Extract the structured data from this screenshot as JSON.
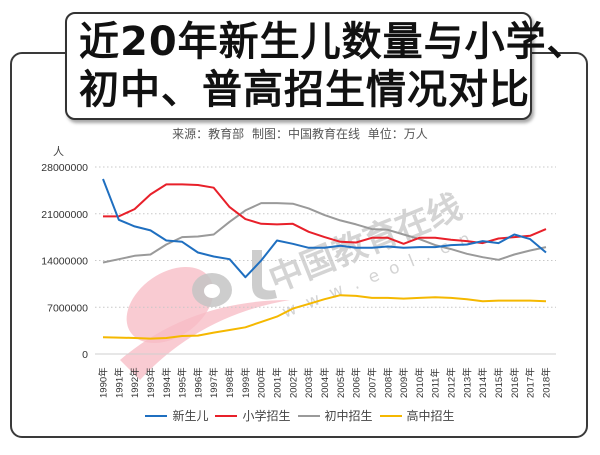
{
  "title": {
    "line1": "近20年新生儿数量与小学、",
    "line2": "初中、普高招生情况对比"
  },
  "subtitle": "来源：教育部    制图：中国教育在线    单位：万人",
  "y_unit": "人",
  "watermark": {
    "logo": "eol",
    "text": "中国教育在线",
    "url": "w w w . e o l . c n"
  },
  "colors": {
    "births": "#1f6fc0",
    "primary": "#e8202a",
    "junior": "#9a9a9a",
    "senior": "#f5b800",
    "grid": "#c8c8c8",
    "axis_text": "#333333"
  },
  "chart_data": {
    "type": "line",
    "title": "近20年新生儿数量与小学、初中、普高招生情况对比",
    "subtitle": "来源：教育部 制图：中国教育在线 单位：万人",
    "xlabel": "",
    "ylabel": "人",
    "ylim": [
      0,
      28000000
    ],
    "yticks": [
      0,
      7000000,
      14000000,
      21000000,
      28000000
    ],
    "ytick_labels": [
      "0",
      "7000000",
      "14000000",
      "21000000",
      "28000000"
    ],
    "grid": "horizontal dotted",
    "legend_position": "bottom",
    "categories": [
      "1990年",
      "1991年",
      "1992年",
      "1993年",
      "1994年",
      "1995年",
      "1996年",
      "1997年",
      "1998年",
      "1999年",
      "2000年",
      "2001年",
      "2002年",
      "2003年",
      "2004年",
      "2005年",
      "2006年",
      "2007年",
      "2008年",
      "2009年",
      "2010年",
      "2011年",
      "2012年",
      "2013年",
      "2014年",
      "2015年",
      "2016年",
      "2017年",
      "2018年"
    ],
    "series": [
      {
        "name": "新生儿",
        "key": "births",
        "values": [
          26200000,
          20100000,
          19100000,
          18500000,
          17000000,
          16800000,
          15200000,
          14600000,
          14200000,
          11500000,
          14000000,
          17000000,
          16500000,
          15900000,
          15900000,
          16200000,
          15900000,
          15900000,
          16100000,
          15900000,
          16000000,
          16000000,
          16300000,
          16400000,
          16900000,
          16600000,
          17900000,
          17200000,
          15200000
        ]
      },
      {
        "name": "小学招生",
        "key": "primary",
        "values": [
          20600000,
          20600000,
          21700000,
          23900000,
          25400000,
          25400000,
          25300000,
          24900000,
          22000000,
          20200000,
          19500000,
          19400000,
          19500000,
          18300000,
          17500000,
          16800000,
          16700000,
          17400000,
          17400000,
          16500000,
          17400000,
          17400000,
          17100000,
          16900000,
          16600000,
          17300000,
          17500000,
          17700000,
          18700000
        ]
      },
      {
        "name": "初中招生",
        "key": "junior",
        "values": [
          13700000,
          14200000,
          14700000,
          14900000,
          16400000,
          17500000,
          17600000,
          17900000,
          19800000,
          21500000,
          22600000,
          22600000,
          22500000,
          21800000,
          20800000,
          20000000,
          19400000,
          18700000,
          18600000,
          17900000,
          17200000,
          16300000,
          15700000,
          15000000,
          14500000,
          14100000,
          14900000,
          15500000,
          16000000
        ]
      },
      {
        "name": "高中招生",
        "key": "senior",
        "values": [
          2500000,
          2450000,
          2400000,
          2300000,
          2400000,
          2700000,
          2750000,
          3200000,
          3600000,
          4000000,
          4800000,
          5600000,
          6800000,
          7500000,
          8200000,
          8800000,
          8700000,
          8400000,
          8400000,
          8300000,
          8400000,
          8500000,
          8400000,
          8200000,
          7900000,
          8000000,
          8000000,
          8000000,
          7900000
        ]
      }
    ]
  }
}
